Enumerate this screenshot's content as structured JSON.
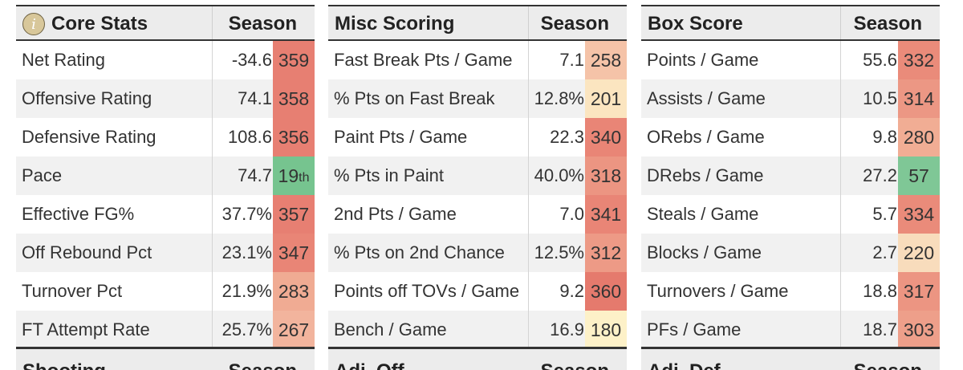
{
  "tables": [
    {
      "title": "Core Stats",
      "has_info_icon": true,
      "season_label": "Season",
      "rows": [
        {
          "label": "Net Rating",
          "value": "-34.6",
          "rank": "359",
          "rank_color": "#e77f72"
        },
        {
          "label": "Offensive Rating",
          "value": "74.1",
          "rank": "358",
          "rank_color": "#e77f72"
        },
        {
          "label": "Defensive Rating",
          "value": "108.6",
          "rank": "356",
          "rank_color": "#e77f72"
        },
        {
          "label": "Pace",
          "value": "74.7",
          "rank": "19",
          "rank_suffix": "th",
          "rank_color": "#76c48f"
        },
        {
          "label": "Effective FG%",
          "value": "37.7%",
          "rank": "357",
          "rank_color": "#e77f72"
        },
        {
          "label": "Off Rebound Pct",
          "value": "23.1%",
          "rank": "347",
          "rank_color": "#e98576"
        },
        {
          "label": "Turnover Pct",
          "value": "21.9%",
          "rank": "283",
          "rank_color": "#f0ab93"
        },
        {
          "label": "FT Attempt Rate",
          "value": "25.7%",
          "rank": "267",
          "rank_color": "#f2b49d"
        }
      ]
    },
    {
      "title": "Misc Scoring",
      "has_info_icon": false,
      "season_label": "Season",
      "rows": [
        {
          "label": "Fast Break Pts / Game",
          "value": "7.1",
          "rank": "258",
          "rank_color": "#f5c3a8"
        },
        {
          "label": "% Pts on Fast Break",
          "value": "12.8%",
          "rank": "201",
          "rank_color": "#fbe5c0"
        },
        {
          "label": "Paint Pts / Game",
          "value": "22.3",
          "rank": "340",
          "rank_color": "#e98576"
        },
        {
          "label": "% Pts in Paint",
          "value": "40.0%",
          "rank": "318",
          "rank_color": "#ec9582"
        },
        {
          "label": "2nd Pts / Game",
          "value": "7.0",
          "rank": "341",
          "rank_color": "#e98576"
        },
        {
          "label": "% Pts on 2nd Chance",
          "value": "12.5%",
          "rank": "312",
          "rank_color": "#ed9a86"
        },
        {
          "label": "Points off TOVs / Game",
          "value": "9.2",
          "rank": "360",
          "rank_color": "#e57a6d"
        },
        {
          "label": "Bench / Game",
          "value": "16.9",
          "rank": "180",
          "rank_color": "#fdf1c8"
        }
      ]
    },
    {
      "title": "Box Score",
      "has_info_icon": false,
      "season_label": "Season",
      "rows": [
        {
          "label": "Points / Game",
          "value": "55.6",
          "rank": "332",
          "rank_color": "#ea8b7a"
        },
        {
          "label": "Assists / Game",
          "value": "10.5",
          "rank": "314",
          "rank_color": "#ec9784"
        },
        {
          "label": "ORebs / Game",
          "value": "9.8",
          "rank": "280",
          "rank_color": "#f1ad94"
        },
        {
          "label": "DRebs / Game",
          "value": "27.2",
          "rank": "57",
          "rank_color": "#7fc796"
        },
        {
          "label": "Steals / Game",
          "value": "5.7",
          "rank": "334",
          "rank_color": "#ea8b7a"
        },
        {
          "label": "Blocks / Game",
          "value": "2.7",
          "rank": "220",
          "rank_color": "#f8dcbc"
        },
        {
          "label": "Turnovers / Game",
          "value": "18.8",
          "rank": "317",
          "rank_color": "#ec9582"
        },
        {
          "label": "PFs / Game",
          "value": "18.7",
          "rank": "303",
          "rank_color": "#ee9f8a"
        }
      ]
    }
  ],
  "next_tables": [
    {
      "title": "Shooting",
      "season_label": "Season"
    },
    {
      "title": "Adj. Off",
      "season_label": "Season"
    },
    {
      "title": "Adj. Def",
      "season_label": "Season"
    }
  ]
}
